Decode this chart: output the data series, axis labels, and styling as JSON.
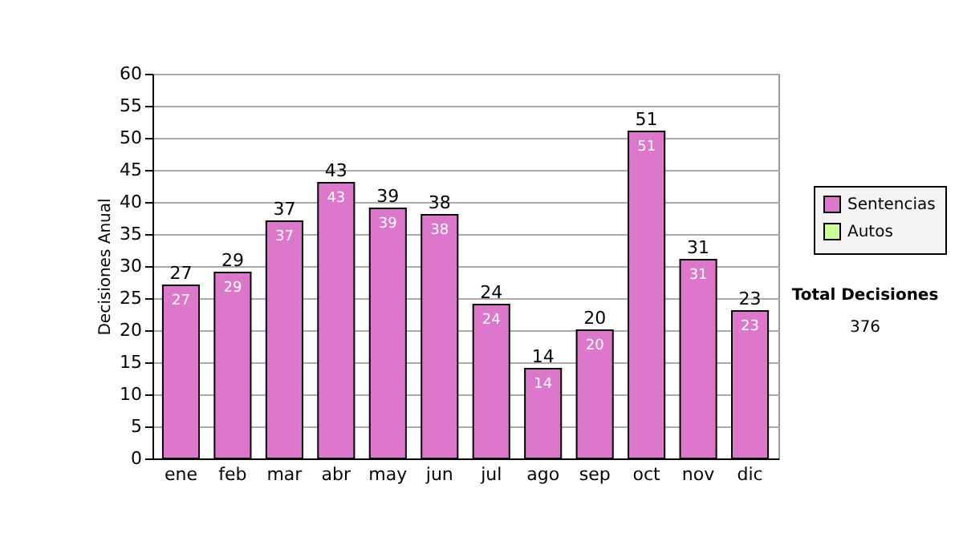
{
  "chart_data": {
    "type": "bar",
    "stacked": true,
    "ylabel": "Decisiones Anual",
    "categories": [
      "ene",
      "feb",
      "mar",
      "abr",
      "may",
      "jun",
      "jul",
      "ago",
      "sep",
      "oct",
      "nov",
      "dic"
    ],
    "series": [
      {
        "name": "Sentencias",
        "color": "#dd77cc",
        "values": [
          27,
          29,
          37,
          43,
          39,
          38,
          24,
          14,
          20,
          51,
          31,
          23
        ],
        "value_labels": [
          "27",
          "29",
          "37",
          "43",
          "39",
          "38",
          "24",
          "14",
          "20",
          "51",
          "31",
          "23"
        ]
      },
      {
        "name": "Autos",
        "color": "#ccff99",
        "values": [
          0,
          0,
          0,
          0,
          0,
          0,
          0,
          0,
          0,
          0,
          0,
          0
        ]
      }
    ],
    "ylim": [
      0,
      60
    ],
    "yticks": [
      0,
      5,
      10,
      15,
      20,
      25,
      30,
      35,
      40,
      45,
      50,
      55,
      60
    ],
    "grid": "y",
    "legend": "right",
    "totals": [
      "27",
      "29",
      "37",
      "43",
      "39",
      "38",
      "24",
      "14",
      "20",
      "51",
      "31",
      "23"
    ],
    "annotations": [
      "Total Decisiones",
      "376"
    ]
  }
}
